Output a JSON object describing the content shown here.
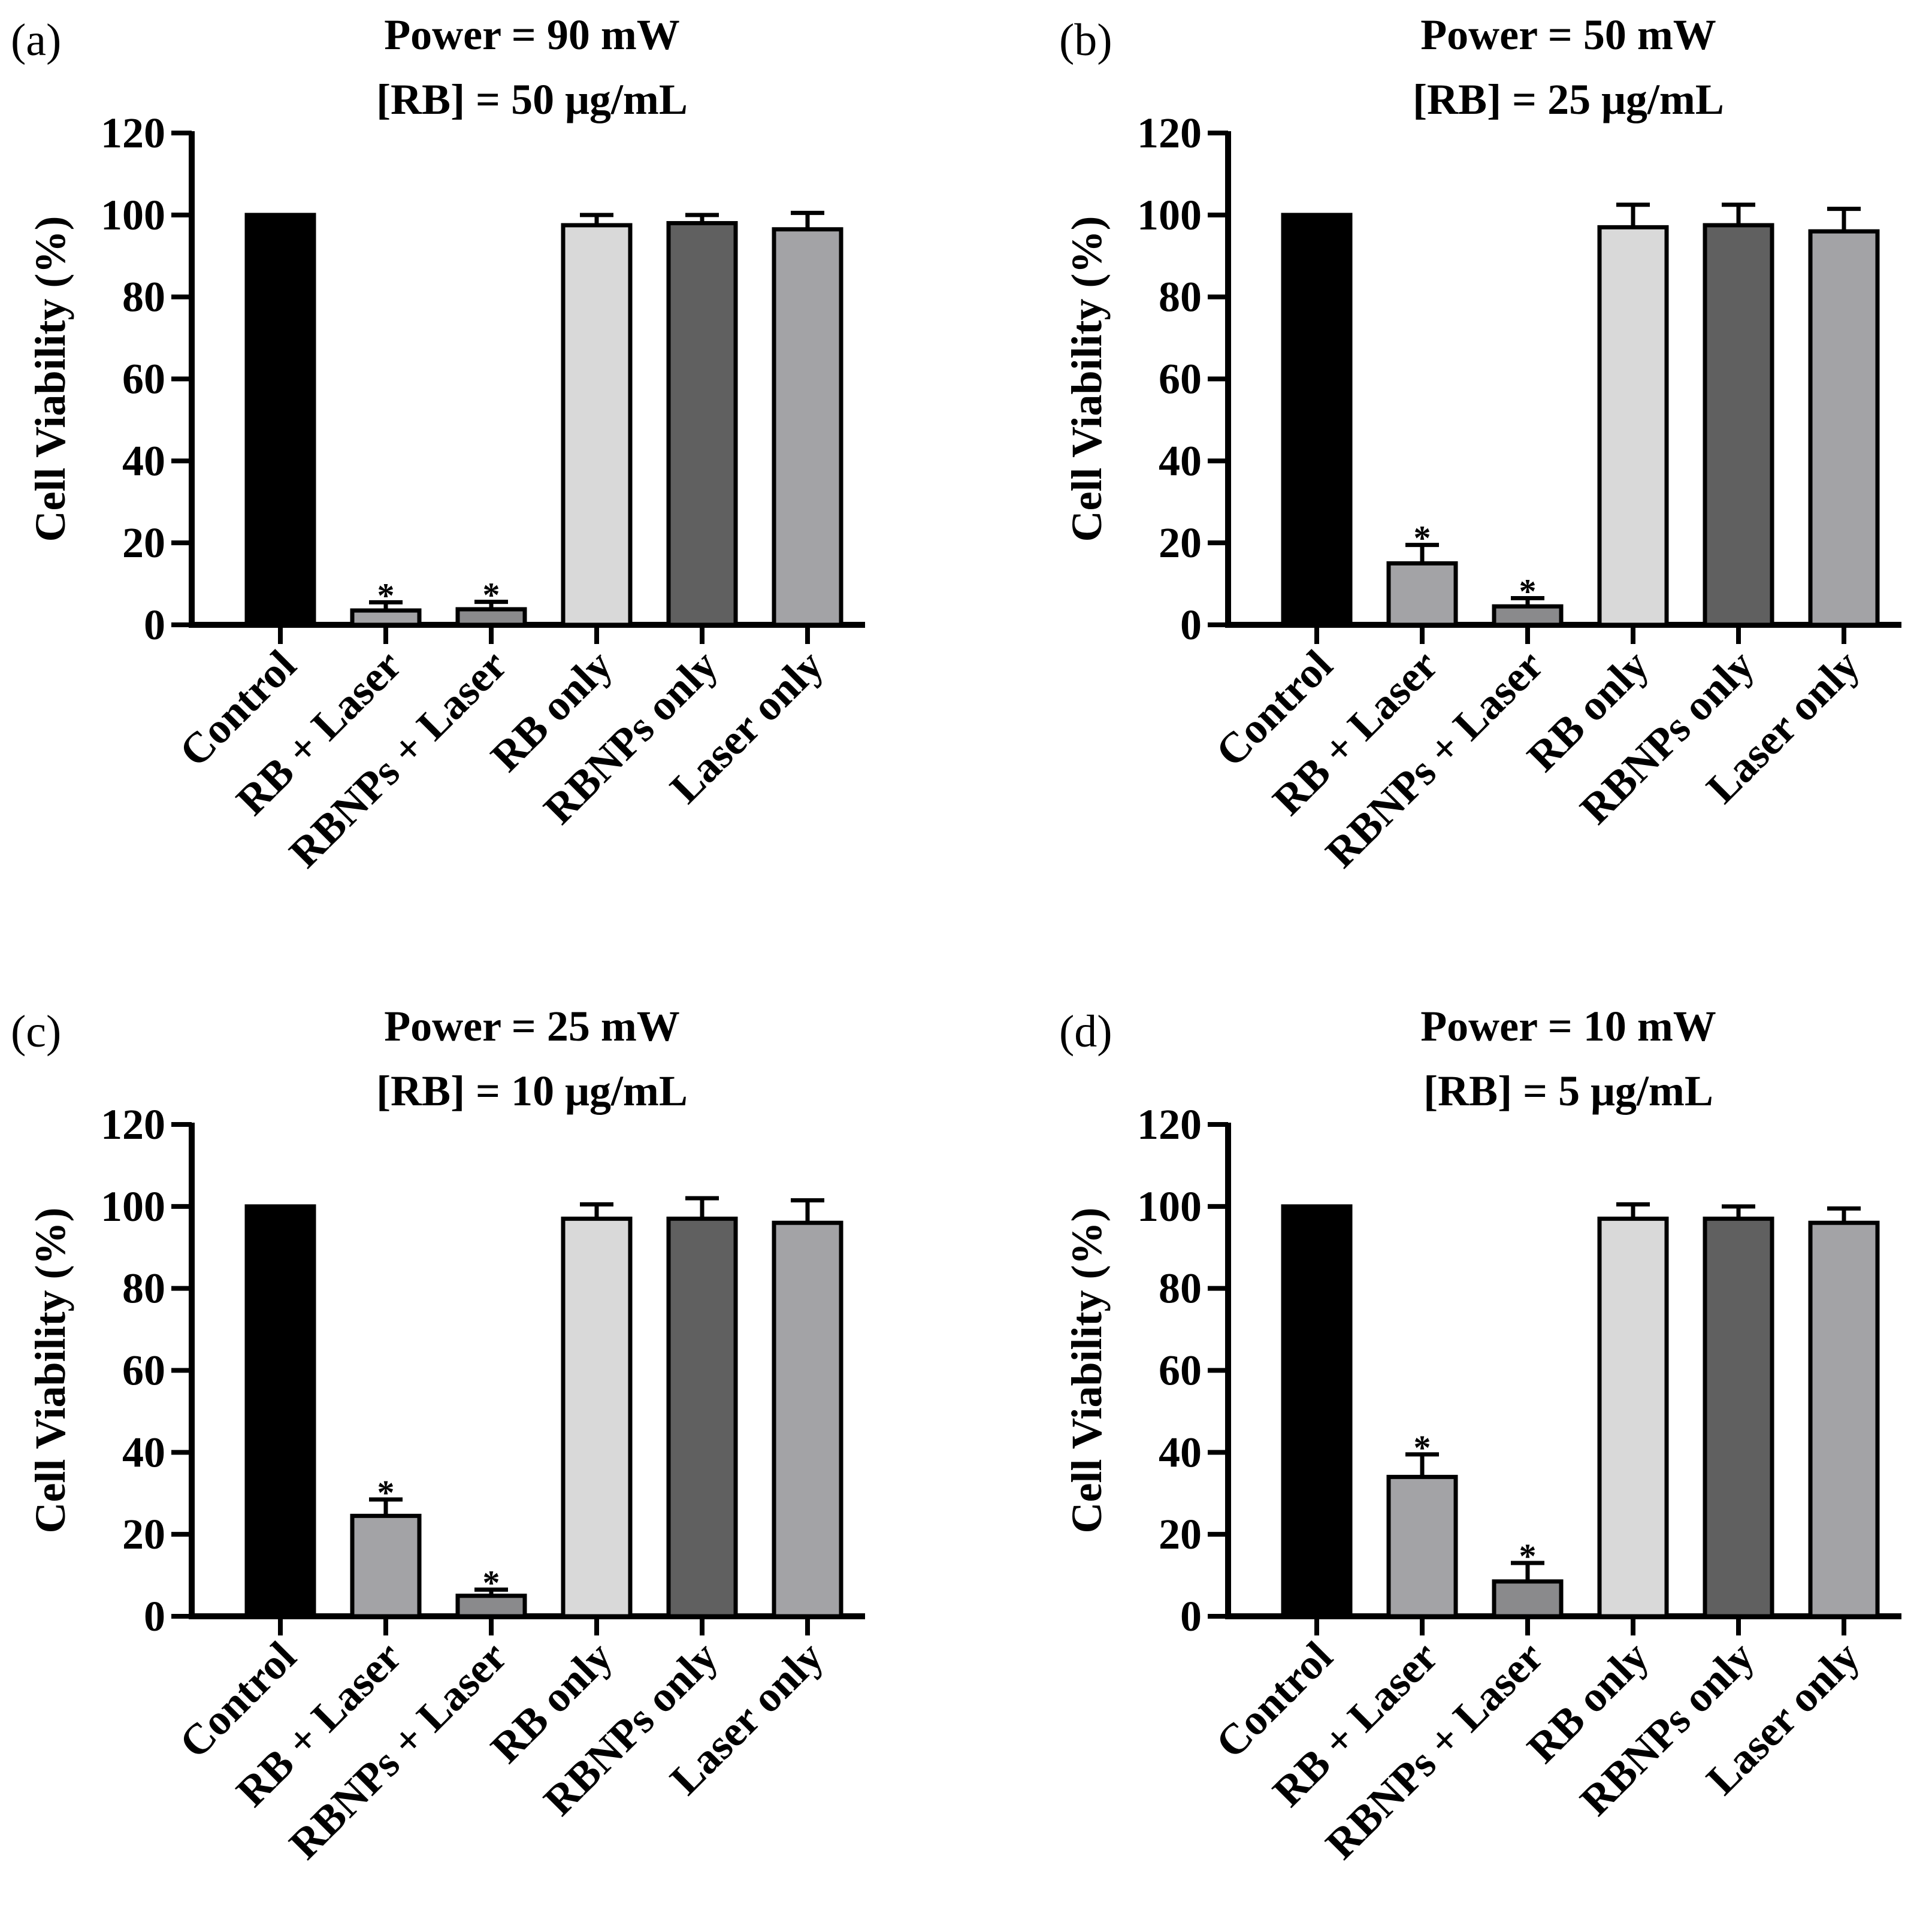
{
  "figure": {
    "panels": [
      "a",
      "b",
      "c",
      "d"
    ]
  },
  "chart_data": [
    {
      "type": "bar",
      "panel_label": "(a)",
      "title_line1": "Power = 90 mW",
      "title_line2": "[RB] = 50 μg/mL",
      "ylabel": "Cell Viability (%)",
      "xlabel": "",
      "ylim": [
        0,
        120
      ],
      "yticks": [
        "0",
        "20",
        "40",
        "60",
        "80",
        "100",
        "120"
      ],
      "categories": [
        "Control",
        "RB + Laser",
        "RBNPs + Laser",
        "RB only",
        "RBNPs only",
        "Laser only"
      ],
      "values": [
        100,
        3.5,
        3.8,
        97.5,
        98,
        96.5
      ],
      "errors": [
        0,
        2,
        1.8,
        2.5,
        2,
        4
      ],
      "significance": [
        "",
        "*",
        "*",
        "",
        "",
        ""
      ],
      "colors": [
        "#000000",
        "#a3a3a6",
        "#8a8a8c",
        "#d9d9d9",
        "#606060",
        "#a3a3a6"
      ]
    },
    {
      "type": "bar",
      "panel_label": "(b)",
      "title_line1": "Power = 50 mW",
      "title_line2": "[RB] = 25 μg/mL",
      "ylabel": "Cell Viability (%)",
      "xlabel": "",
      "ylim": [
        0,
        120
      ],
      "yticks": [
        "0",
        "20",
        "40",
        "60",
        "80",
        "100",
        "120"
      ],
      "categories": [
        "Control",
        "RB + Laser",
        "RBNPs + Laser",
        "RB only",
        "RBNPs only",
        "Laser only"
      ],
      "values": [
        100,
        15,
        4.5,
        97,
        97.5,
        96
      ],
      "errors": [
        0,
        4.5,
        2,
        5.5,
        5,
        5.5
      ],
      "significance": [
        "",
        "*",
        "*",
        "",
        "",
        ""
      ],
      "colors": [
        "#000000",
        "#a3a3a6",
        "#8a8a8c",
        "#d9d9d9",
        "#606060",
        "#a3a3a6"
      ]
    },
    {
      "type": "bar",
      "panel_label": "(c)",
      "title_line1": "Power = 25 mW",
      "title_line2": "[RB] = 10 μg/mL",
      "ylabel": "Cell Viability (%)",
      "xlabel": "",
      "ylim": [
        0,
        120
      ],
      "yticks": [
        "0",
        "20",
        "40",
        "60",
        "80",
        "100",
        "120"
      ],
      "categories": [
        "Control",
        "RB + Laser",
        "RBNPs + Laser",
        "RB only",
        "RBNPs only",
        "Laser only"
      ],
      "values": [
        100,
        24.5,
        5,
        97,
        97,
        96
      ],
      "errors": [
        0,
        4,
        1.5,
        3.5,
        5,
        5.5
      ],
      "significance": [
        "",
        "*",
        "*",
        "",
        "",
        ""
      ],
      "colors": [
        "#000000",
        "#a3a3a6",
        "#8a8a8c",
        "#d9d9d9",
        "#606060",
        "#a3a3a6"
      ]
    },
    {
      "type": "bar",
      "panel_label": "(d)",
      "title_line1": "Power = 10 mW",
      "title_line2": "[RB] = 5 μg/mL",
      "ylabel": "Cell Viability (%)",
      "xlabel": "",
      "ylim": [
        0,
        120
      ],
      "yticks": [
        "0",
        "20",
        "40",
        "60",
        "80",
        "100",
        "120"
      ],
      "categories": [
        "Control",
        "RB + Laser",
        "RBNPs + Laser",
        "RB only",
        "RBNPs only",
        "Laser only"
      ],
      "values": [
        100,
        34,
        8.5,
        97,
        97,
        96
      ],
      "errors": [
        0,
        5.5,
        4.5,
        3.5,
        3,
        3.5
      ],
      "significance": [
        "",
        "*",
        "*",
        "",
        "",
        ""
      ],
      "colors": [
        "#000000",
        "#a3a3a6",
        "#8a8a8c",
        "#d9d9d9",
        "#606060",
        "#a3a3a6"
      ]
    }
  ]
}
